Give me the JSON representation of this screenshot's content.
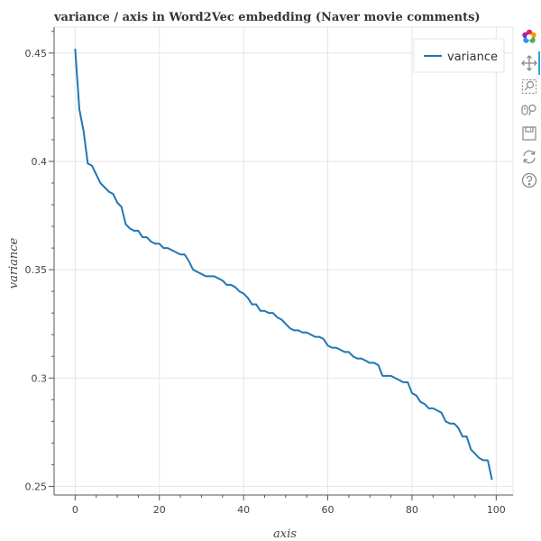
{
  "chart_data": {
    "type": "line",
    "title": "variance / axis in Word2Vec embedding (Naver movie comments)",
    "xlabel": "axis",
    "ylabel": "variance",
    "xlim": [
      -5,
      104
    ],
    "ylim": [
      0.246,
      0.462
    ],
    "x_ticks": [
      0,
      20,
      40,
      60,
      80,
      100
    ],
    "y_ticks": [
      0.25,
      0.3,
      0.35,
      0.4,
      0.45
    ],
    "y_tick_labels": [
      "0.25",
      "0.3",
      "0.35",
      "0.4",
      "0.45"
    ],
    "grid": true,
    "legend": {
      "placement": "top-right",
      "entries": [
        "variance"
      ]
    },
    "series": [
      {
        "name": "variance",
        "color": "#1f77b4",
        "x": [
          0,
          1,
          2,
          3,
          4,
          5,
          6,
          7,
          8,
          9,
          10,
          11,
          12,
          13,
          14,
          15,
          16,
          17,
          18,
          19,
          20,
          21,
          22,
          23,
          24,
          25,
          26,
          27,
          28,
          29,
          30,
          31,
          32,
          33,
          34,
          35,
          36,
          37,
          38,
          39,
          40,
          41,
          42,
          43,
          44,
          45,
          46,
          47,
          48,
          49,
          50,
          51,
          52,
          53,
          54,
          55,
          56,
          57,
          58,
          59,
          60,
          61,
          62,
          63,
          64,
          65,
          66,
          67,
          68,
          69,
          70,
          71,
          72,
          73,
          74,
          75,
          76,
          77,
          78,
          79,
          80,
          81,
          82,
          83,
          84,
          85,
          86,
          87,
          88,
          89,
          90,
          91,
          92,
          93,
          94,
          95,
          96,
          97,
          98,
          99
        ],
        "values": [
          0.452,
          0.424,
          0.414,
          0.399,
          0.398,
          0.394,
          0.39,
          0.388,
          0.386,
          0.385,
          0.381,
          0.379,
          0.371,
          0.369,
          0.368,
          0.368,
          0.365,
          0.365,
          0.363,
          0.362,
          0.362,
          0.36,
          0.36,
          0.359,
          0.358,
          0.357,
          0.357,
          0.354,
          0.35,
          0.349,
          0.348,
          0.347,
          0.347,
          0.347,
          0.346,
          0.345,
          0.343,
          0.343,
          0.342,
          0.34,
          0.339,
          0.337,
          0.334,
          0.334,
          0.331,
          0.331,
          0.33,
          0.33,
          0.328,
          0.327,
          0.325,
          0.323,
          0.322,
          0.322,
          0.321,
          0.321,
          0.32,
          0.319,
          0.319,
          0.318,
          0.315,
          0.314,
          0.314,
          0.313,
          0.312,
          0.312,
          0.31,
          0.309,
          0.309,
          0.308,
          0.307,
          0.307,
          0.306,
          0.301,
          0.301,
          0.301,
          0.3,
          0.299,
          0.298,
          0.298,
          0.293,
          0.292,
          0.289,
          0.288,
          0.286,
          0.286,
          0.285,
          0.284,
          0.28,
          0.279,
          0.279,
          0.277,
          0.273,
          0.273,
          0.267,
          0.265,
          0.263,
          0.262,
          0.262,
          0.253
        ]
      }
    ]
  },
  "toolbar": {
    "tools": [
      {
        "icon": "bokeh-logo-icon",
        "active": false
      },
      {
        "icon": "pan-icon",
        "active": true
      },
      {
        "icon": "box-zoom-icon",
        "active": false
      },
      {
        "icon": "wheel-zoom-icon",
        "active": false
      },
      {
        "icon": "save-icon",
        "active": false
      },
      {
        "icon": "reset-icon",
        "active": false
      },
      {
        "icon": "help-icon",
        "active": false
      }
    ]
  }
}
